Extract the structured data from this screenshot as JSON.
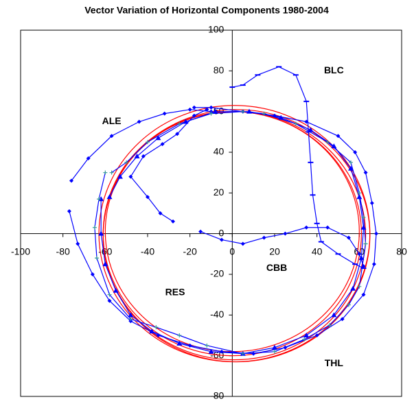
{
  "chart_data": {
    "type": "scatter",
    "title": "Vector Variation of Horizontal Components 1980-2004",
    "xlim": [
      -100,
      80
    ],
    "ylim": [
      -80,
      100
    ],
    "xticks": [
      -100,
      -80,
      -60,
      -40,
      -20,
      0,
      20,
      40,
      60,
      80
    ],
    "yticks": [
      -80,
      -60,
      -40,
      -20,
      0,
      20,
      40,
      60,
      80,
      100
    ],
    "circles": [
      {
        "color": "#ff0000",
        "cx": 0,
        "cy": 0,
        "rx": 61,
        "ry": 60
      },
      {
        "color": "#ff0000",
        "cx": 1,
        "cy": -1,
        "rx": 62,
        "ry": 61
      },
      {
        "color": "#ff0000",
        "cx": 0,
        "cy": 1,
        "rx": 60,
        "ry": 59
      },
      {
        "color": "#ff0000",
        "cx": 2,
        "cy": -1,
        "rx": 63,
        "ry": 62
      },
      {
        "color": "#ff0000",
        "cx": 1,
        "cy": 0,
        "rx": 64,
        "ry": 63
      }
    ],
    "series": [
      {
        "name": "ALE",
        "color": "#0000ff",
        "marker": "diamond",
        "x": [
          -28,
          -34,
          -40,
          -48,
          -42,
          -33,
          -26,
          -18,
          -12,
          null,
          -76,
          -68,
          -57,
          -44,
          -32,
          -20,
          -10,
          null,
          -77,
          -73,
          -66,
          -58,
          -48,
          -35,
          -20,
          -5,
          10,
          25,
          40,
          52,
          62,
          67,
          68,
          66,
          63,
          58,
          50,
          35,
          20,
          5,
          -10,
          -18
        ],
        "y": [
          6,
          10,
          18,
          28,
          38,
          44,
          49,
          58,
          61,
          null,
          26,
          37,
          48,
          55,
          59,
          61,
          60,
          null,
          11,
          -5,
          -20,
          -33,
          -43,
          -50,
          -55,
          -58,
          -59,
          -56,
          -50,
          -42,
          -30,
          -15,
          0,
          15,
          30,
          40,
          48,
          55,
          58,
          60,
          62,
          62
        ]
      },
      {
        "name": "BLC",
        "color": "#0000ff",
        "marker": "dash",
        "x": [
          0,
          5,
          12,
          22,
          30,
          35,
          36,
          37,
          38,
          40,
          42,
          50,
          58,
          62
        ],
        "y": [
          72,
          73,
          78,
          82,
          78,
          65,
          50,
          35,
          19,
          5,
          -4,
          -10,
          -15,
          -17
        ]
      },
      {
        "name": "CBB",
        "color": "#0000ff",
        "marker": "diamond",
        "x": [
          -15,
          -5,
          5,
          15,
          25,
          35,
          45,
          55,
          60,
          62
        ],
        "y": [
          1,
          -3,
          -5,
          -2,
          0,
          3,
          3,
          -2,
          -10,
          -16
        ]
      },
      {
        "name": "RES",
        "color": "#0000ff",
        "marker": "triangle",
        "x": [
          -62,
          -62,
          -60,
          -55,
          -48,
          -38,
          -25,
          -10,
          5,
          20,
          35,
          48,
          57,
          61,
          62,
          60,
          56,
          48,
          37,
          23,
          8,
          -8,
          -22,
          -35,
          -45,
          -53,
          -58
        ],
        "y": [
          17,
          0,
          -15,
          -28,
          -40,
          -48,
          -54,
          -58,
          -59,
          -56,
          -50,
          -40,
          -27,
          -12,
          3,
          18,
          32,
          43,
          51,
          57,
          60,
          60,
          55,
          47,
          38,
          28,
          18
        ]
      },
      {
        "name": "THL",
        "color": "#0000ff",
        "marker": "plus",
        "x": [
          -60,
          -63,
          -65,
          -64,
          -58,
          -48,
          -36,
          -25,
          -12,
          5,
          20,
          34,
          46,
          55,
          60,
          63,
          62,
          60,
          56,
          45,
          30,
          15,
          5,
          -10,
          -25,
          -40,
          -50,
          -57
        ],
        "y": [
          30,
          17,
          3,
          -12,
          -30,
          -42,
          -46,
          -50,
          -55,
          -59,
          -58,
          -52,
          -45,
          -35,
          -26,
          -5,
          8,
          20,
          35,
          45,
          54,
          59,
          60,
          59,
          54,
          45,
          35,
          30
        ]
      }
    ]
  }
}
